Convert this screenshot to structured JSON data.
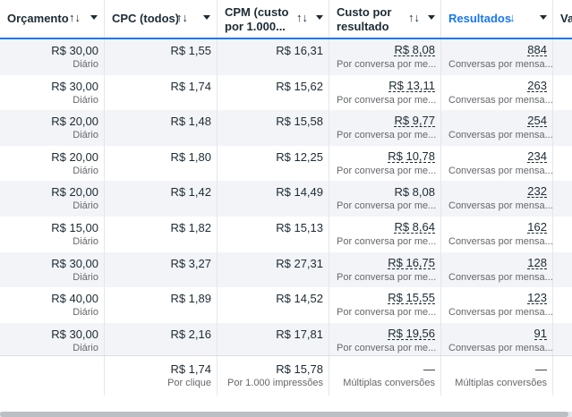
{
  "headers": {
    "budget": "Orçamento",
    "cpc": "CPC (todos)",
    "cpm_line1": "CPM (custo",
    "cpm_line2": "por 1.000...",
    "cost_line1": "Custo por",
    "cost_line2": "resultado",
    "results": "Resultados",
    "next": "Va",
    "sort_both": "↑↓",
    "sort_down": "↓"
  },
  "rows": [
    {
      "budget": "R$ 30,00",
      "budget_sub": "Diário",
      "cpc": "R$ 1,55",
      "cpm": "R$ 16,31",
      "cost": "R$ 8,08",
      "cost_sub": "Por conversa por me...",
      "results": "884",
      "results_sub": "Conversas por mensa..."
    },
    {
      "budget": "R$ 30,00",
      "budget_sub": "Diário",
      "cpc": "R$ 1,74",
      "cpm": "R$ 15,62",
      "cost": "R$ 13,11",
      "cost_sub": "Por conversa por me...",
      "results": "263",
      "results_sub": "Conversas por mensa..."
    },
    {
      "budget": "R$ 20,00",
      "budget_sub": "Diário",
      "cpc": "R$ 1,48",
      "cpm": "R$ 15,58",
      "cost": "R$ 9,77",
      "cost_sub": "Por conversa por me...",
      "results": "254",
      "results_sub": "Conversas por mensa..."
    },
    {
      "budget": "R$ 20,00",
      "budget_sub": "Diário",
      "cpc": "R$ 1,80",
      "cpm": "R$ 12,25",
      "cost": "R$ 10,78",
      "cost_sub": "Por conversa por me...",
      "results": "234",
      "results_sub": "Conversas por mensa..."
    },
    {
      "budget": "R$ 20,00",
      "budget_sub": "Diário",
      "cpc": "R$ 1,42",
      "cpm": "R$ 14,49",
      "cost": "R$ 8,08",
      "cost_sub": "Por conversa por me...",
      "results": "232",
      "results_sub": "Conversas por mensa..."
    },
    {
      "budget": "R$ 15,00",
      "budget_sub": "Diário",
      "cpc": "R$ 1,82",
      "cpm": "R$ 15,13",
      "cost": "R$ 8,64",
      "cost_sub": "Por conversa por me...",
      "results": "162",
      "results_sub": "Conversas por mensa..."
    },
    {
      "budget": "R$ 30,00",
      "budget_sub": "Diário",
      "cpc": "R$ 3,27",
      "cpm": "R$ 27,31",
      "cost": "R$ 16,75",
      "cost_sub": "Por conversa por me...",
      "results": "128",
      "results_sub": "Conversas por mensa..."
    },
    {
      "budget": "R$ 40,00",
      "budget_sub": "Diário",
      "cpc": "R$ 1,89",
      "cpm": "R$ 14,52",
      "cost": "R$ 15,55",
      "cost_sub": "Por conversa por me...",
      "results": "123",
      "results_sub": "Conversas por mensa..."
    },
    {
      "budget": "R$ 30,00",
      "budget_sub": "Diário",
      "cpc": "R$ 2,16",
      "cpm": "R$ 17,81",
      "cost": "R$ 19,56",
      "cost_sub": "Por conversa por me...",
      "results": "91",
      "results_sub": "Conversas por mensa..."
    }
  ],
  "totals": {
    "cpc": "R$ 1,74",
    "cpc_sub": "Por clique",
    "cpm": "R$ 15,78",
    "cpm_sub": "Por 1.000 impressões",
    "cost": "—",
    "cost_sub": "Múltiplas conversões",
    "results": "—",
    "results_sub": "Múltiplas conversões"
  }
}
